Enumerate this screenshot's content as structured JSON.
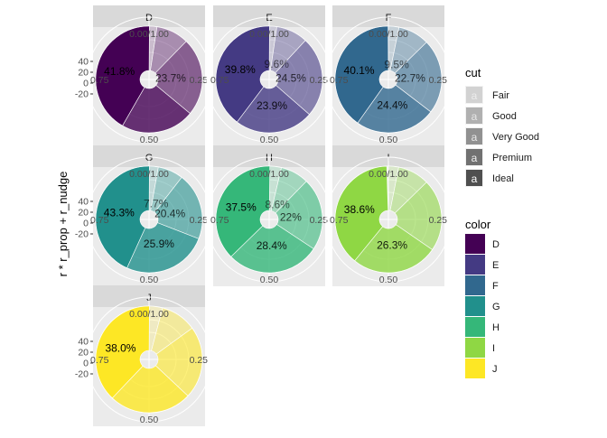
{
  "chart_data": {
    "type": "pie",
    "y_axis_title": "r * r_prop + r_nudge",
    "radial_ticks": [
      "40",
      "20",
      "0",
      "-20"
    ],
    "angle_labels": {
      "top": "0.00/1.00",
      "right": "0.25",
      "bottom": "0.50",
      "left": "0.75"
    },
    "cut_levels": [
      "Fair",
      "Good",
      "Very Good",
      "Premium",
      "Ideal"
    ],
    "cut_alpha": [
      0.2,
      0.4,
      0.6,
      0.8,
      1.0
    ],
    "legend_cut_title": "cut",
    "legend_color_title": "color",
    "legend_key_glyph": "a",
    "panels": [
      {
        "label": "D",
        "color": "#440154",
        "props": [
          0.024,
          0.099,
          0.237,
          0.223,
          0.418
        ],
        "pct_labels": [
          "",
          "",
          "23.7%",
          "",
          "41.8%"
        ]
      },
      {
        "label": "E",
        "color": "#443A83",
        "props": [
          0.023,
          0.096,
          0.245,
          0.239,
          0.398
        ],
        "pct_labels": [
          "",
          "9.6%",
          "24.5%",
          "23.9%",
          "39.8%"
        ]
      },
      {
        "label": "F",
        "color": "#31688E",
        "props": [
          0.032,
          0.095,
          0.227,
          0.244,
          0.401
        ],
        "pct_labels": [
          "",
          "9.5%",
          "22.7%",
          "24.4%",
          "40.1%"
        ]
      },
      {
        "label": "G",
        "color": "#21908C",
        "props": [
          0.028,
          0.077,
          0.204,
          0.259,
          0.433
        ],
        "pct_labels": [
          "",
          "7.7%",
          "20.4%",
          "25.9%",
          "43.3%"
        ]
      },
      {
        "label": "H",
        "color": "#35B779",
        "props": [
          0.037,
          0.086,
          0.22,
          0.284,
          0.375
        ],
        "pct_labels": [
          "",
          "8.6%",
          "22%",
          "28.4%",
          "37.5%"
        ]
      },
      {
        "label": "I",
        "color": "#8FD744",
        "props": [
          0.031,
          0.096,
          0.219,
          0.263,
          0.386
        ],
        "pct_labels": [
          "",
          "",
          "",
          "26.3%",
          "38.6%"
        ]
      },
      {
        "label": "J",
        "color": "#FDE725",
        "props": [
          0.041,
          0.109,
          0.22,
          0.251,
          0.38
        ],
        "pct_labels": [
          "",
          "",
          "",
          "",
          "38.0%"
        ]
      }
    ]
  }
}
